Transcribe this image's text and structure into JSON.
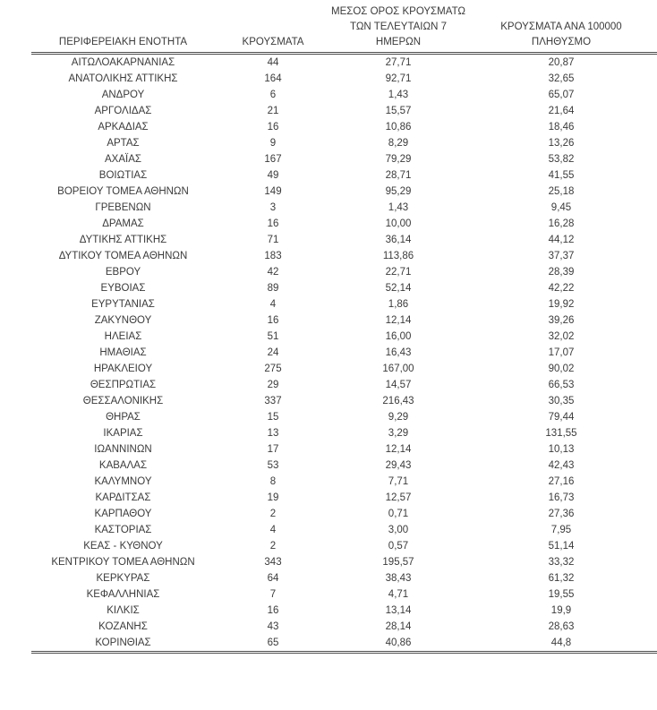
{
  "table": {
    "headers": {
      "region": "ΠΕΡΙΦΕΡΕΙΑΚΗ ΕΝΟΤΗΤΑ",
      "cases": "ΚΡΟΥΣΜΑΤΑ",
      "avg7_lines": [
        "ΜΕΣΟΣ ΟΡΟΣ ΚΡΟΥΣΜΑΤΩΝ",
        "ΤΩΝ ΤΕΛΕΥΤΑΙΩΝ 7",
        "ΗΜΕΡΩΝ"
      ],
      "per100k_lines": [
        "ΚΡΟΥΣΜΑΤΑ ΑΝΑ 100000",
        "ΠΛΗΘΥΣΜΟ"
      ]
    },
    "rows": [
      {
        "region": "ΑΙΤΩΛΟΑΚΑΡΝΑΝΙΑΣ",
        "cases": "44",
        "avg7": "27,71",
        "per100k": "20,87"
      },
      {
        "region": "ΑΝΑΤΟΛΙΚΗΣ ΑΤΤΙΚΗΣ",
        "cases": "164",
        "avg7": "92,71",
        "per100k": "32,65"
      },
      {
        "region": "ΑΝΔΡΟΥ",
        "cases": "6",
        "avg7": "1,43",
        "per100k": "65,07"
      },
      {
        "region": "ΑΡΓΟΛΙΔΑΣ",
        "cases": "21",
        "avg7": "15,57",
        "per100k": "21,64"
      },
      {
        "region": "ΑΡΚΑΔΙΑΣ",
        "cases": "16",
        "avg7": "10,86",
        "per100k": "18,46"
      },
      {
        "region": "ΑΡΤΑΣ",
        "cases": "9",
        "avg7": "8,29",
        "per100k": "13,26"
      },
      {
        "region": "ΑΧΑΪΑΣ",
        "cases": "167",
        "avg7": "79,29",
        "per100k": "53,82"
      },
      {
        "region": "ΒΟΙΩΤΙΑΣ",
        "cases": "49",
        "avg7": "28,71",
        "per100k": "41,55"
      },
      {
        "region": "ΒΟΡΕΙΟΥ ΤΟΜΕΑ ΑΘΗΝΩΝ",
        "cases": "149",
        "avg7": "95,29",
        "per100k": "25,18"
      },
      {
        "region": "ΓΡΕΒΕΝΩΝ",
        "cases": "3",
        "avg7": "1,43",
        "per100k": "9,45"
      },
      {
        "region": "ΔΡΑΜΑΣ",
        "cases": "16",
        "avg7": "10,00",
        "per100k": "16,28"
      },
      {
        "region": "ΔΥΤΙΚΗΣ ΑΤΤΙΚΗΣ",
        "cases": "71",
        "avg7": "36,14",
        "per100k": "44,12"
      },
      {
        "region": "ΔΥΤΙΚΟΥ ΤΟΜΕΑ ΑΘΗΝΩΝ",
        "cases": "183",
        "avg7": "113,86",
        "per100k": "37,37"
      },
      {
        "region": "ΕΒΡΟΥ",
        "cases": "42",
        "avg7": "22,71",
        "per100k": "28,39"
      },
      {
        "region": "ΕΥΒΟΙΑΣ",
        "cases": "89",
        "avg7": "52,14",
        "per100k": "42,22"
      },
      {
        "region": "ΕΥΡΥΤΑΝΙΑΣ",
        "cases": "4",
        "avg7": "1,86",
        "per100k": "19,92"
      },
      {
        "region": "ΖΑΚΥΝΘΟΥ",
        "cases": "16",
        "avg7": "12,14",
        "per100k": "39,26"
      },
      {
        "region": "ΗΛΕΙΑΣ",
        "cases": "51",
        "avg7": "16,00",
        "per100k": "32,02"
      },
      {
        "region": "ΗΜΑΘΙΑΣ",
        "cases": "24",
        "avg7": "16,43",
        "per100k": "17,07"
      },
      {
        "region": "ΗΡΑΚΛΕΙΟΥ",
        "cases": "275",
        "avg7": "167,00",
        "per100k": "90,02"
      },
      {
        "region": "ΘΕΣΠΡΩΤΙΑΣ",
        "cases": "29",
        "avg7": "14,57",
        "per100k": "66,53"
      },
      {
        "region": "ΘΕΣΣΑΛΟΝΙΚΗΣ",
        "cases": "337",
        "avg7": "216,43",
        "per100k": "30,35"
      },
      {
        "region": "ΘΗΡΑΣ",
        "cases": "15",
        "avg7": "9,29",
        "per100k": "79,44"
      },
      {
        "region": "ΙΚΑΡΙΑΣ",
        "cases": "13",
        "avg7": "3,29",
        "per100k": "131,55"
      },
      {
        "region": "ΙΩΑΝΝΙΝΩΝ",
        "cases": "17",
        "avg7": "12,14",
        "per100k": "10,13"
      },
      {
        "region": "ΚΑΒΑΛΑΣ",
        "cases": "53",
        "avg7": "29,43",
        "per100k": "42,43"
      },
      {
        "region": "ΚΑΛΥΜΝΟΥ",
        "cases": "8",
        "avg7": "7,71",
        "per100k": "27,16"
      },
      {
        "region": "ΚΑΡΔΙΤΣΑΣ",
        "cases": "19",
        "avg7": "12,57",
        "per100k": "16,73"
      },
      {
        "region": "ΚΑΡΠΑΘΟΥ",
        "cases": "2",
        "avg7": "0,71",
        "per100k": "27,36"
      },
      {
        "region": "ΚΑΣΤΟΡΙΑΣ",
        "cases": "4",
        "avg7": "3,00",
        "per100k": "7,95"
      },
      {
        "region": "ΚΕΑΣ - ΚΥΘΝΟΥ",
        "cases": "2",
        "avg7": "0,57",
        "per100k": "51,14"
      },
      {
        "region": "ΚΕΝΤΡΙΚΟΥ ΤΟΜΕΑ ΑΘΗΝΩΝ",
        "cases": "343",
        "avg7": "195,57",
        "per100k": "33,32"
      },
      {
        "region": "ΚΕΡΚΥΡΑΣ",
        "cases": "64",
        "avg7": "38,43",
        "per100k": "61,32"
      },
      {
        "region": "ΚΕΦΑΛΛΗΝΙΑΣ",
        "cases": "7",
        "avg7": "4,71",
        "per100k": "19,55"
      },
      {
        "region": "ΚΙΛΚΙΣ",
        "cases": "16",
        "avg7": "13,14",
        "per100k": "19,9"
      },
      {
        "region": "ΚΟΖΑΝΗΣ",
        "cases": "43",
        "avg7": "28,14",
        "per100k": "28,63"
      },
      {
        "region": "ΚΟΡΙΝΘΙΑΣ",
        "cases": "65",
        "avg7": "40,86",
        "per100k": "44,8"
      }
    ]
  },
  "colors": {
    "text": "#3b3b3b",
    "rule": "#4d4d4d",
    "background": "#ffffff"
  }
}
